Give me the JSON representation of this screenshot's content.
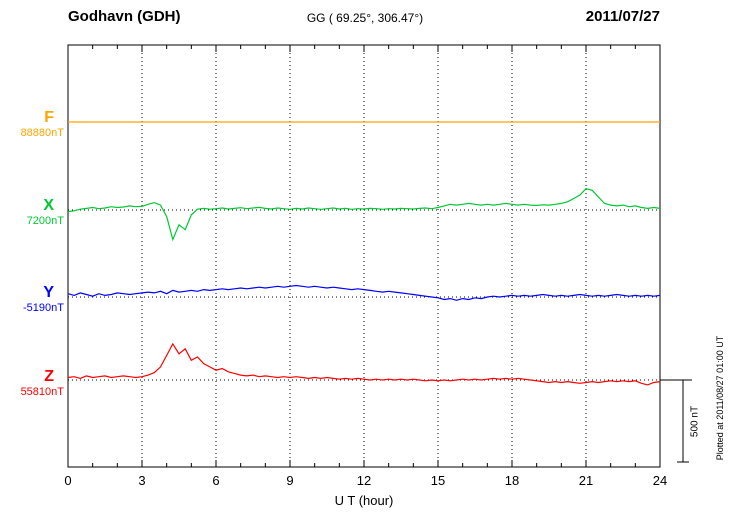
{
  "header": {
    "station": "Godhavn (GDH)",
    "coordinates": "GG ( 69.25°, 306.47°)",
    "date": "2011/07/27"
  },
  "footer": {
    "plotted_at": "Plotted at 2011/08/27 01:00 UT"
  },
  "chart_data": {
    "type": "line",
    "title": "Godhavn (GDH) magnetogram",
    "xlabel": "U T (hour)",
    "x_range": [
      0,
      24
    ],
    "x_ticks": [
      0,
      3,
      6,
      9,
      12,
      15,
      18,
      21,
      24
    ],
    "sample_step_hours": 0.25,
    "grid": "dotted vertical lines every 3 hours, dotted horizontal baseline per component",
    "legend_position": "left-outside",
    "scale_bar": {
      "label": "500 nT",
      "nT": 500
    },
    "series": [
      {
        "name": "F",
        "baseline_label": "88880nT",
        "baseline_nT": 88880,
        "color": "#ffa500",
        "offsets_nT": [
          0,
          0,
          0,
          0,
          0,
          0,
          0,
          0,
          0,
          0,
          0,
          0,
          0,
          0,
          0,
          0,
          0,
          0,
          0,
          0,
          0,
          0,
          0,
          0,
          0,
          0,
          0,
          0,
          0,
          0,
          0,
          0,
          0,
          0,
          0,
          0,
          0,
          0,
          0,
          0,
          0,
          0,
          0,
          0,
          0,
          0,
          0,
          0,
          0,
          0,
          0,
          0,
          0,
          0,
          0,
          0,
          0,
          0,
          0,
          0,
          0,
          0,
          0,
          0,
          0,
          0,
          0,
          0,
          0,
          0,
          0,
          0,
          0,
          0,
          0,
          0,
          0,
          0,
          0,
          0,
          0,
          0,
          0,
          0,
          0,
          0,
          0,
          0,
          0,
          0,
          0,
          0,
          0,
          0,
          0,
          0,
          0
        ]
      },
      {
        "name": "X",
        "baseline_label": "7200nT",
        "baseline_nT": 7200,
        "color": "#00c832",
        "offsets_nT": [
          -10,
          -5,
          5,
          10,
          15,
          8,
          12,
          20,
          15,
          18,
          25,
          20,
          22,
          35,
          45,
          30,
          -40,
          -180,
          -90,
          -120,
          -30,
          5,
          10,
          5,
          8,
          12,
          6,
          10,
          14,
          8,
          12,
          16,
          10,
          6,
          12,
          8,
          4,
          10,
          6,
          12,
          8,
          4,
          8,
          12,
          6,
          10,
          4,
          8,
          6,
          10,
          8,
          4,
          8,
          6,
          10,
          8,
          6,
          10,
          12,
          8,
          15,
          25,
          35,
          30,
          35,
          40,
          35,
          30,
          35,
          30,
          35,
          40,
          35,
          30,
          35,
          30,
          28,
          32,
          30,
          35,
          40,
          50,
          70,
          90,
          130,
          120,
          80,
          40,
          30,
          25,
          30,
          20,
          25,
          15,
          10,
          15,
          10
        ]
      },
      {
        "name": "Y",
        "baseline_label": "-5190nT",
        "baseline_nT": -5190,
        "color": "#0000ff",
        "offsets_nT": [
          20,
          10,
          25,
          15,
          5,
          20,
          10,
          15,
          25,
          20,
          15,
          20,
          25,
          30,
          25,
          35,
          20,
          40,
          30,
          35,
          40,
          35,
          45,
          40,
          45,
          50,
          45,
          50,
          55,
          50,
          55,
          60,
          55,
          60,
          65,
          60,
          65,
          70,
          65,
          60,
          65,
          60,
          55,
          60,
          55,
          50,
          45,
          50,
          45,
          40,
          35,
          30,
          35,
          30,
          25,
          20,
          15,
          10,
          5,
          0,
          -5,
          -15,
          -10,
          -20,
          -10,
          -15,
          -5,
          -10,
          0,
          5,
          0,
          5,
          10,
          5,
          10,
          5,
          10,
          15,
          10,
          5,
          10,
          5,
          10,
          15,
          10,
          5,
          10,
          5,
          10,
          15,
          10,
          5,
          10,
          5,
          10,
          5,
          10
        ]
      },
      {
        "name": "Z",
        "baseline_label": "55810nT",
        "baseline_nT": 55810,
        "color": "#ff0000",
        "offsets_nT": [
          15,
          20,
          10,
          25,
          15,
          20,
          25,
          15,
          20,
          25,
          20,
          15,
          20,
          30,
          45,
          80,
          150,
          220,
          160,
          190,
          120,
          140,
          100,
          80,
          60,
          70,
          50,
          40,
          30,
          25,
          30,
          20,
          25,
          20,
          15,
          20,
          15,
          20,
          15,
          10,
          15,
          10,
          15,
          10,
          5,
          10,
          5,
          10,
          5,
          0,
          5,
          0,
          5,
          0,
          5,
          0,
          5,
          0,
          -5,
          0,
          -5,
          0,
          -5,
          0,
          5,
          0,
          5,
          0,
          5,
          10,
          5,
          10,
          5,
          10,
          5,
          0,
          -5,
          -10,
          -15,
          -10,
          -15,
          -10,
          -15,
          -20,
          -15,
          -10,
          -15,
          -10,
          -5,
          -10,
          -5,
          -10,
          -5,
          -20,
          -30,
          -15,
          -10
        ]
      }
    ]
  }
}
